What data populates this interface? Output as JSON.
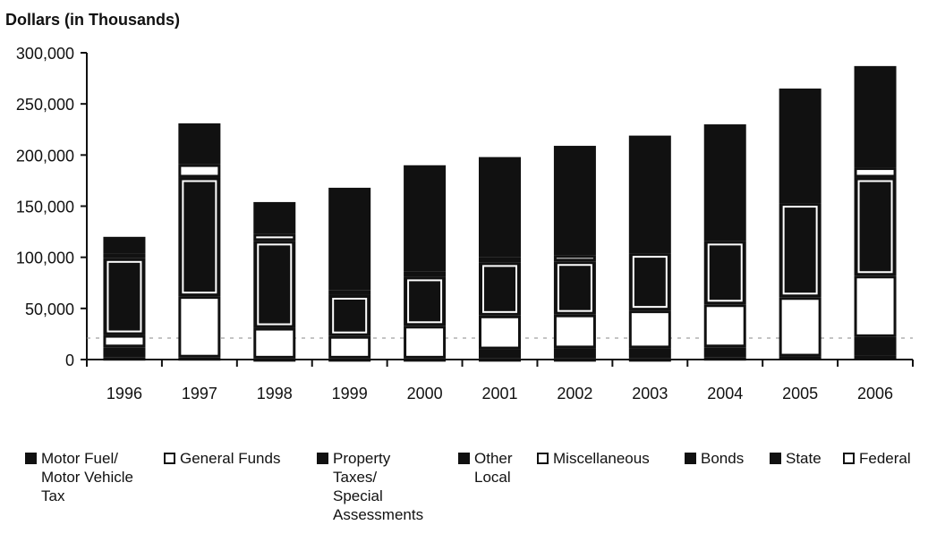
{
  "chart_data": {
    "type": "bar",
    "stacked": true,
    "title": "",
    "ylabel": "Dollars (in Thousands)",
    "xlabel": "",
    "ylim": [
      0,
      300000
    ],
    "yticks": [
      0,
      50000,
      100000,
      150000,
      200000,
      250000,
      300000
    ],
    "ytick_labels": [
      "0",
      "50,000",
      "100,000",
      "150,000",
      "200,000",
      "250,000",
      "300,000"
    ],
    "categories": [
      "1996",
      "1997",
      "1998",
      "1999",
      "2000",
      "2001",
      "2002",
      "2003",
      "2004",
      "2005",
      "2006"
    ],
    "legend_position": "bottom",
    "series": [
      {
        "name": "Federal",
        "style": "white",
        "values": [
          2000,
          2000,
          1000,
          1000,
          1000,
          1000,
          1000,
          1000,
          2000,
          3000,
          4000
        ]
      },
      {
        "name": "State",
        "style": "dark",
        "values": [
          10000,
          0,
          0,
          0,
          0,
          9000,
          10000,
          10000,
          10000,
          0,
          18000
        ]
      },
      {
        "name": "Bonds",
        "style": "dark",
        "values": [
          0,
          0,
          0,
          0,
          0,
          0,
          0,
          0,
          0,
          0,
          0
        ]
      },
      {
        "name": "Miscellaneous",
        "style": "white",
        "values": [
          12000,
          60000,
          30000,
          22000,
          32000,
          33000,
          33000,
          37000,
          42000,
          58000,
          60000
        ]
      },
      {
        "name": "Other Local",
        "style": "dark",
        "values": [
          0,
          0,
          0,
          0,
          0,
          0,
          0,
          0,
          0,
          0,
          0
        ]
      },
      {
        "name": "Property Taxes/ Special Assessments",
        "style": "dark-outlined",
        "values": [
          75000,
          116000,
          85000,
          40000,
          48000,
          52000,
          52000,
          56000,
          62000,
          92000,
          96000
        ]
      },
      {
        "name": "General Funds",
        "style": "white",
        "values": [
          5000,
          13000,
          7000,
          5000,
          5000,
          5000,
          6000,
          0,
          0,
          0,
          10000
        ]
      },
      {
        "name": "Motor Fuel/ Motor Vehicle Tax",
        "style": "dark",
        "values": [
          16000,
          40000,
          31000,
          100000,
          104000,
          98000,
          107000,
          115000,
          114000,
          112000,
          99000
        ]
      }
    ]
  },
  "legend": [
    {
      "label": "Motor Fuel/\nMotor Vehicle\nTax",
      "swatch": "#111111"
    },
    {
      "label": "General Funds",
      "swatch": "#ffffff"
    },
    {
      "label": "Property\nTaxes/\nSpecial\nAssessments",
      "swatch": "#111111"
    },
    {
      "label": "Other\nLocal",
      "swatch": "#111111"
    },
    {
      "label": "Miscellaneous",
      "swatch": "#ffffff"
    },
    {
      "label": "Bonds",
      "swatch": "#111111"
    },
    {
      "label": "State",
      "swatch": "#111111"
    },
    {
      "label": "Federal",
      "swatch": "#ffffff"
    }
  ],
  "colors": {
    "dark": "#111111",
    "white": "#ffffff",
    "axis": "#111111"
  }
}
